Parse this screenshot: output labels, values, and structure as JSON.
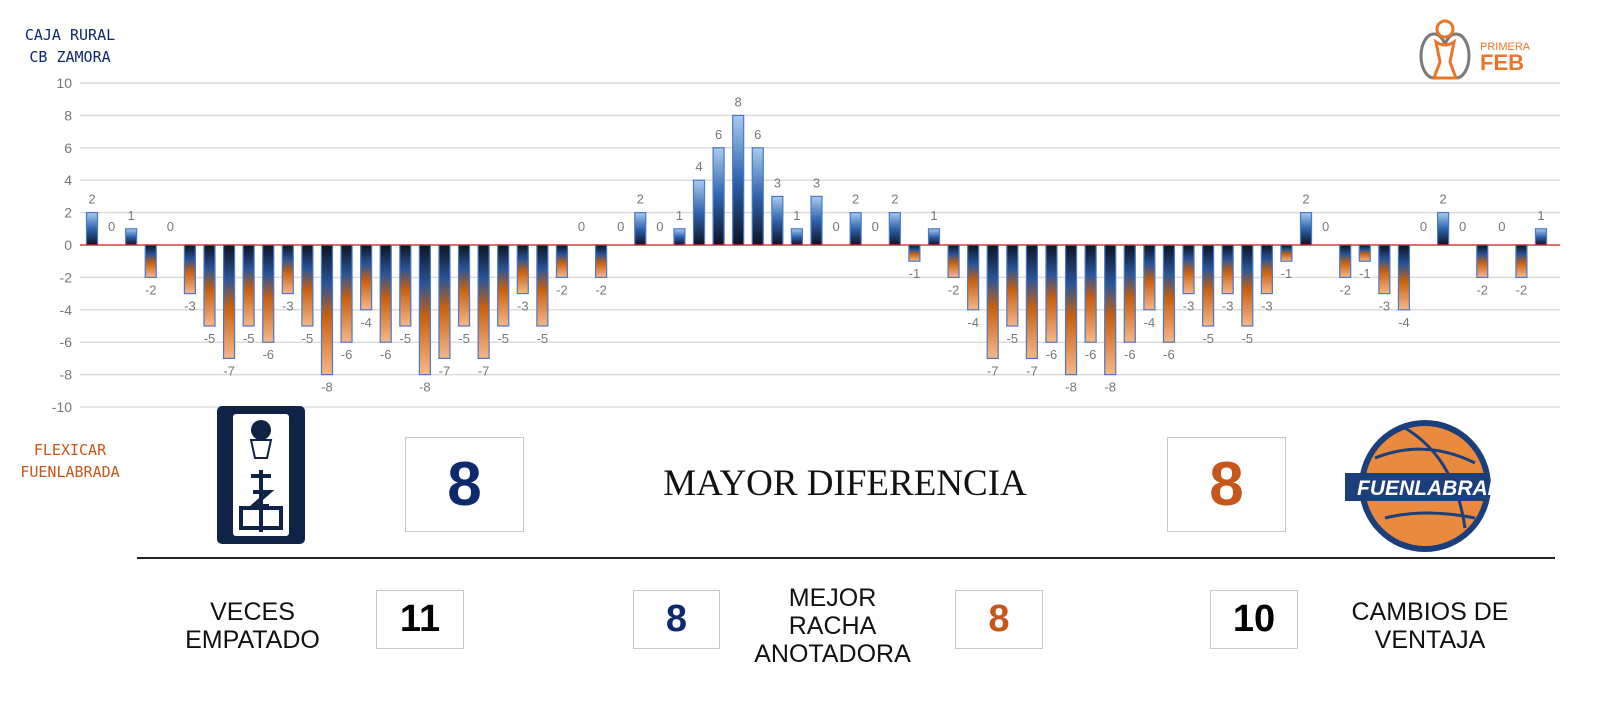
{
  "teams": {
    "home": {
      "line1": "CAJA RURAL",
      "line2": "CB ZAMORA",
      "color": "#0d2a6e"
    },
    "away": {
      "line1": "FLEXICAR",
      "line2": "FUENLABRADA",
      "color": "#c8561a"
    }
  },
  "logos": {
    "league": {
      "line1": "PRIMERA",
      "line2": "FEB"
    },
    "away_logo_text": "FUENLABRADA"
  },
  "chart_data": {
    "type": "bar",
    "title": "",
    "xlabel": "",
    "ylabel": "",
    "ylim": [
      -10,
      10
    ],
    "yticks": [
      10,
      8,
      6,
      4,
      2,
      0,
      -2,
      -4,
      -6,
      -8,
      -10
    ],
    "grid": true,
    "zero_line_color": "#e02020",
    "values": [
      2,
      0,
      1,
      -2,
      0,
      -3,
      -5,
      -7,
      -5,
      -6,
      -3,
      -5,
      -8,
      -6,
      -4,
      -6,
      -5,
      -8,
      -7,
      -5,
      -7,
      -5,
      -3,
      -5,
      -2,
      0,
      -2,
      0,
      2,
      0,
      1,
      4,
      6,
      8,
      6,
      3,
      1,
      3,
      0,
      2,
      0,
      2,
      -1,
      1,
      -2,
      -4,
      -7,
      -5,
      -7,
      -6,
      -8,
      -6,
      -8,
      -6,
      -4,
      -6,
      -3,
      -5,
      -3,
      -5,
      -3,
      -1,
      2,
      0,
      -2,
      -1,
      -3,
      -4,
      0,
      2,
      0,
      -2,
      0,
      -2,
      1
    ]
  },
  "stats": {
    "mayor_diferencia": {
      "label": "MAYOR DIFERENCIA",
      "home": "8",
      "away": "8"
    },
    "veces_empatado": {
      "line1": "VECES",
      "line2": "EMPATADO",
      "value": "11"
    },
    "mejor_racha": {
      "line1": "MEJOR",
      "line2": "RACHA",
      "line3": "ANOTADORA",
      "home": "8",
      "away": "8"
    },
    "cambios_ventaja": {
      "line1": "CAMBIOS DE",
      "line2": "VENTAJA",
      "value": "10"
    }
  }
}
